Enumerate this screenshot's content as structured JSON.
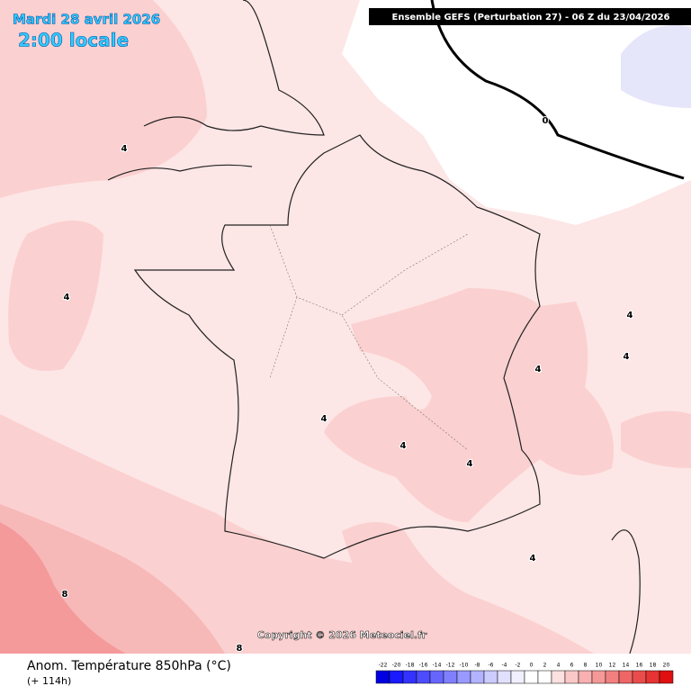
{
  "title": {
    "date": "Mardi 28 avril 2026",
    "time": "2:00 locale"
  },
  "header": "Ensemble GEFS  (Perturbation 27)  -  06 Z du 23/04/2026",
  "copyright": "Copyright © 2026 Meteociel.fr",
  "footer": {
    "label": "Anom. Température 850hPa (°C)",
    "lead": "(+ 114h)"
  },
  "legend": {
    "ticks": [
      -22,
      -20,
      -18,
      -16,
      -14,
      -12,
      -10,
      -8,
      -6,
      -4,
      -2,
      0,
      2,
      4,
      6,
      8,
      10,
      12,
      14,
      16,
      18,
      20
    ],
    "colors": [
      "#0000e0",
      "#1a1aff",
      "#3333ff",
      "#4d4dff",
      "#6666ff",
      "#8080ff",
      "#9999ff",
      "#b3b3ff",
      "#ccccff",
      "#e0e0ff",
      "#f0f0ff",
      "#ffffff",
      "#ffffff",
      "#fde0e0",
      "#fbc8c8",
      "#f9b0b0",
      "#f59898",
      "#f28080",
      "#ee6666",
      "#ea4c4c",
      "#e63333",
      "#e01010"
    ]
  },
  "contour_labels": [
    4,
    4,
    4,
    4,
    4,
    4,
    4,
    4,
    4,
    8,
    8,
    0
  ]
}
